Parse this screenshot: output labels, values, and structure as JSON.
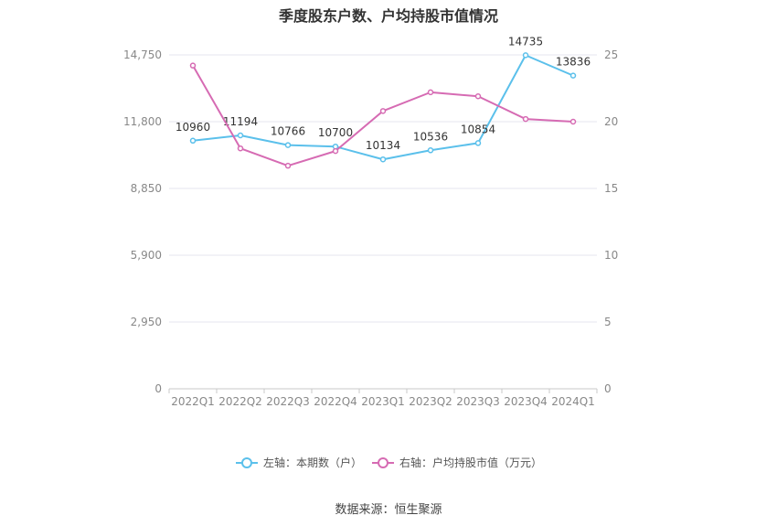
{
  "chart_data": {
    "type": "line",
    "title": "季度股东户数、户均持股市值情况",
    "categories": [
      "2022Q1",
      "2022Q2",
      "2022Q3",
      "2022Q4",
      "2023Q1",
      "2023Q2",
      "2023Q3",
      "2023Q4",
      "2024Q1"
    ],
    "series": [
      {
        "name": "左轴：本期数（户）",
        "axis": "left",
        "color": "#5bc0eb",
        "values": [
          10960,
          11194,
          10766,
          10700,
          10134,
          10536,
          10854,
          14735,
          13836
        ],
        "show_labels": true
      },
      {
        "name": "右轴：户均持股市值（万元）",
        "axis": "right",
        "color": "#d66bb3",
        "values": [
          24.2,
          18.0,
          16.7,
          17.8,
          20.8,
          22.2,
          21.9,
          20.2,
          20.0
        ],
        "show_labels": false
      }
    ],
    "y_left": {
      "ylim": [
        0,
        14750
      ],
      "ticks": [
        0,
        2950,
        5900,
        8850,
        11800,
        14750
      ],
      "tick_labels": [
        "0",
        "2,950",
        "5,900",
        "8,850",
        "11,800",
        "14,750"
      ]
    },
    "y_right": {
      "ylim": [
        0,
        25
      ],
      "ticks": [
        0,
        5,
        10,
        15,
        20,
        25
      ],
      "tick_labels": [
        "0",
        "5",
        "10",
        "15",
        "20",
        "25"
      ]
    },
    "grid": true,
    "legend": "bottom"
  },
  "source": "数据来源：恒生聚源"
}
